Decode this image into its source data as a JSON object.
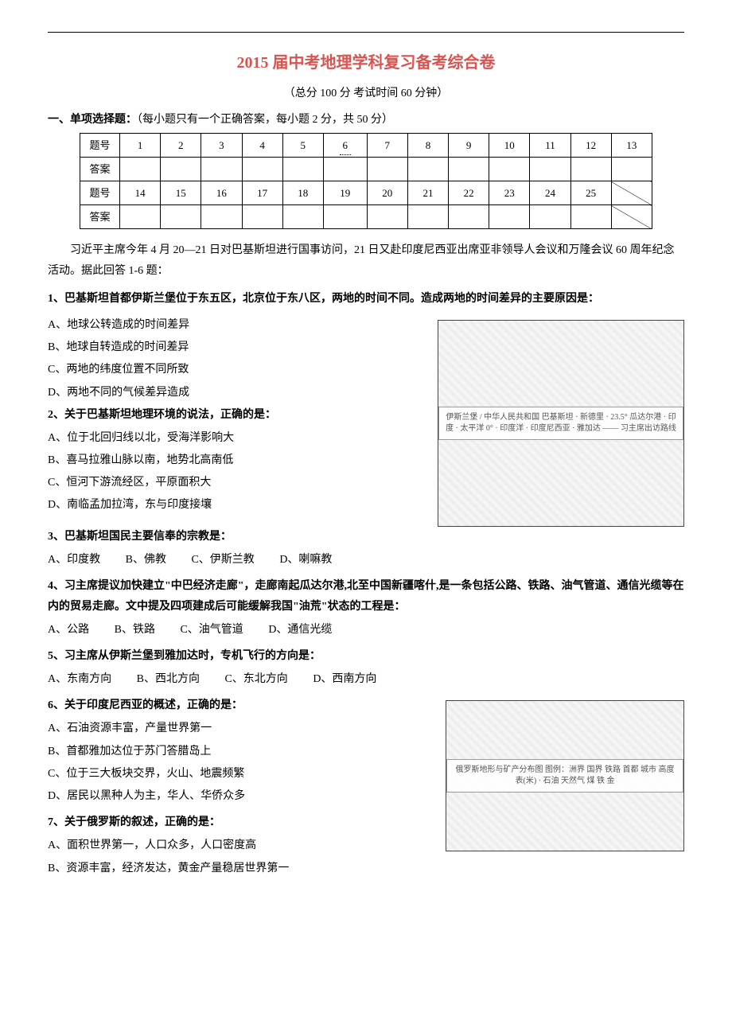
{
  "divider": "—",
  "title": "2015 届中考地理学科复习备考综合卷",
  "subtitle": "（总分 100 分  考试时间  60 分钟）",
  "section1_label": "一、单项选择题：",
  "section1_note": "（每小题只有一个正确答案，每小题 2 分，共 50 分）",
  "grid": {
    "row_label_q": "题号",
    "row_label_a": "答案",
    "row1": [
      "1",
      "2",
      "3",
      "4",
      "5",
      "6",
      "7",
      "8",
      "9",
      "10",
      "11",
      "12",
      "13"
    ],
    "row2": [
      "14",
      "15",
      "16",
      "17",
      "18",
      "19",
      "20",
      "21",
      "22",
      "23",
      "24",
      "25"
    ]
  },
  "intro": "习近平主席今年 4 月 20—21 日对巴基斯坦进行国事访问，21 日又赴印度尼西亚出席亚非领导人会议和万隆会议 60 周年纪念活动。据此回答 1-6 题：",
  "q1": {
    "text": "1、巴基斯坦首都伊斯兰堡位于东五区，北京位于东八区，两地的时间不同。造成两地的时间差异的主要原因是：",
    "a": "A、地球公转造成的时间差异",
    "b": "B、地球自转造成的时间差异",
    "c": "C、两地的纬度位置不同所致",
    "d": "D、两地不同的气候差异造成"
  },
  "q2": {
    "text": "2、关于巴基斯坦地理环境的说法，正确的是：",
    "a": "A、位于北回归线以北，受海洋影响大",
    "b": "B、喜马拉雅山脉以南，地势北高南低",
    "c": "C、恒河下游流经区，平原面积大",
    "d": "D、南临孟加拉湾，东与印度接壤"
  },
  "q3": {
    "text": "3、巴基斯坦国民主要信奉的宗教是：",
    "a": "A、印度教",
    "b": "B、佛教",
    "c": "C、伊斯兰教",
    "d": "D、喇嘛教"
  },
  "q4": {
    "text": "4、习主席提议加快建立\"中巴经济走廊\"，走廊南起瓜达尔港,北至中国新疆喀什,是一条包括公路、铁路、油气管道、通信光缆等在内的贸易走廊。文中提及四项建成后可能缓解我国\"油荒\"状态的工程是：",
    "a": "A、公路",
    "b": "B、铁路",
    "c": "C、油气管道",
    "d": "D、通信光缆"
  },
  "q5": {
    "text": "5、习主席从伊斯兰堡到雅加达时，专机飞行的方向是：",
    "a": "A、东南方向",
    "b": "B、西北方向",
    "c": "C、东北方向",
    "d": "D、西南方向"
  },
  "q6": {
    "text": "6、关于印度尼西亚的概述，正确的是：",
    "a": "A、石油资源丰富，产量世界第一",
    "b": "B、首都雅加达位于苏门答腊岛上",
    "c": "C、位于三大板块交界，火山、地震频繁",
    "d": "D、居民以黑种人为主，华人、华侨众多"
  },
  "q7": {
    "text": "7、关于俄罗斯的叙述，正确的是：",
    "a": "A、面积世界第一，人口众多，人口密度高",
    "b": "B、资源丰富，经济发达，黄金产量稳居世界第一"
  },
  "map1_caption": "伊斯兰堡 / 中华人民共和国\n巴基斯坦 · 新德里 · 23.5°\n瓜达尔港 · 印度 · 太平洋\n0° · 印度洋 · 印度尼西亚 · 雅加达\n—— 习主席出访路线",
  "map2_caption": "俄罗斯地形与矿产分布图\n图例：洲界 国界 铁路 首都 城市\n高度表(米) · 石油 天然气 煤 铁 金",
  "dotted6_text": "6"
}
